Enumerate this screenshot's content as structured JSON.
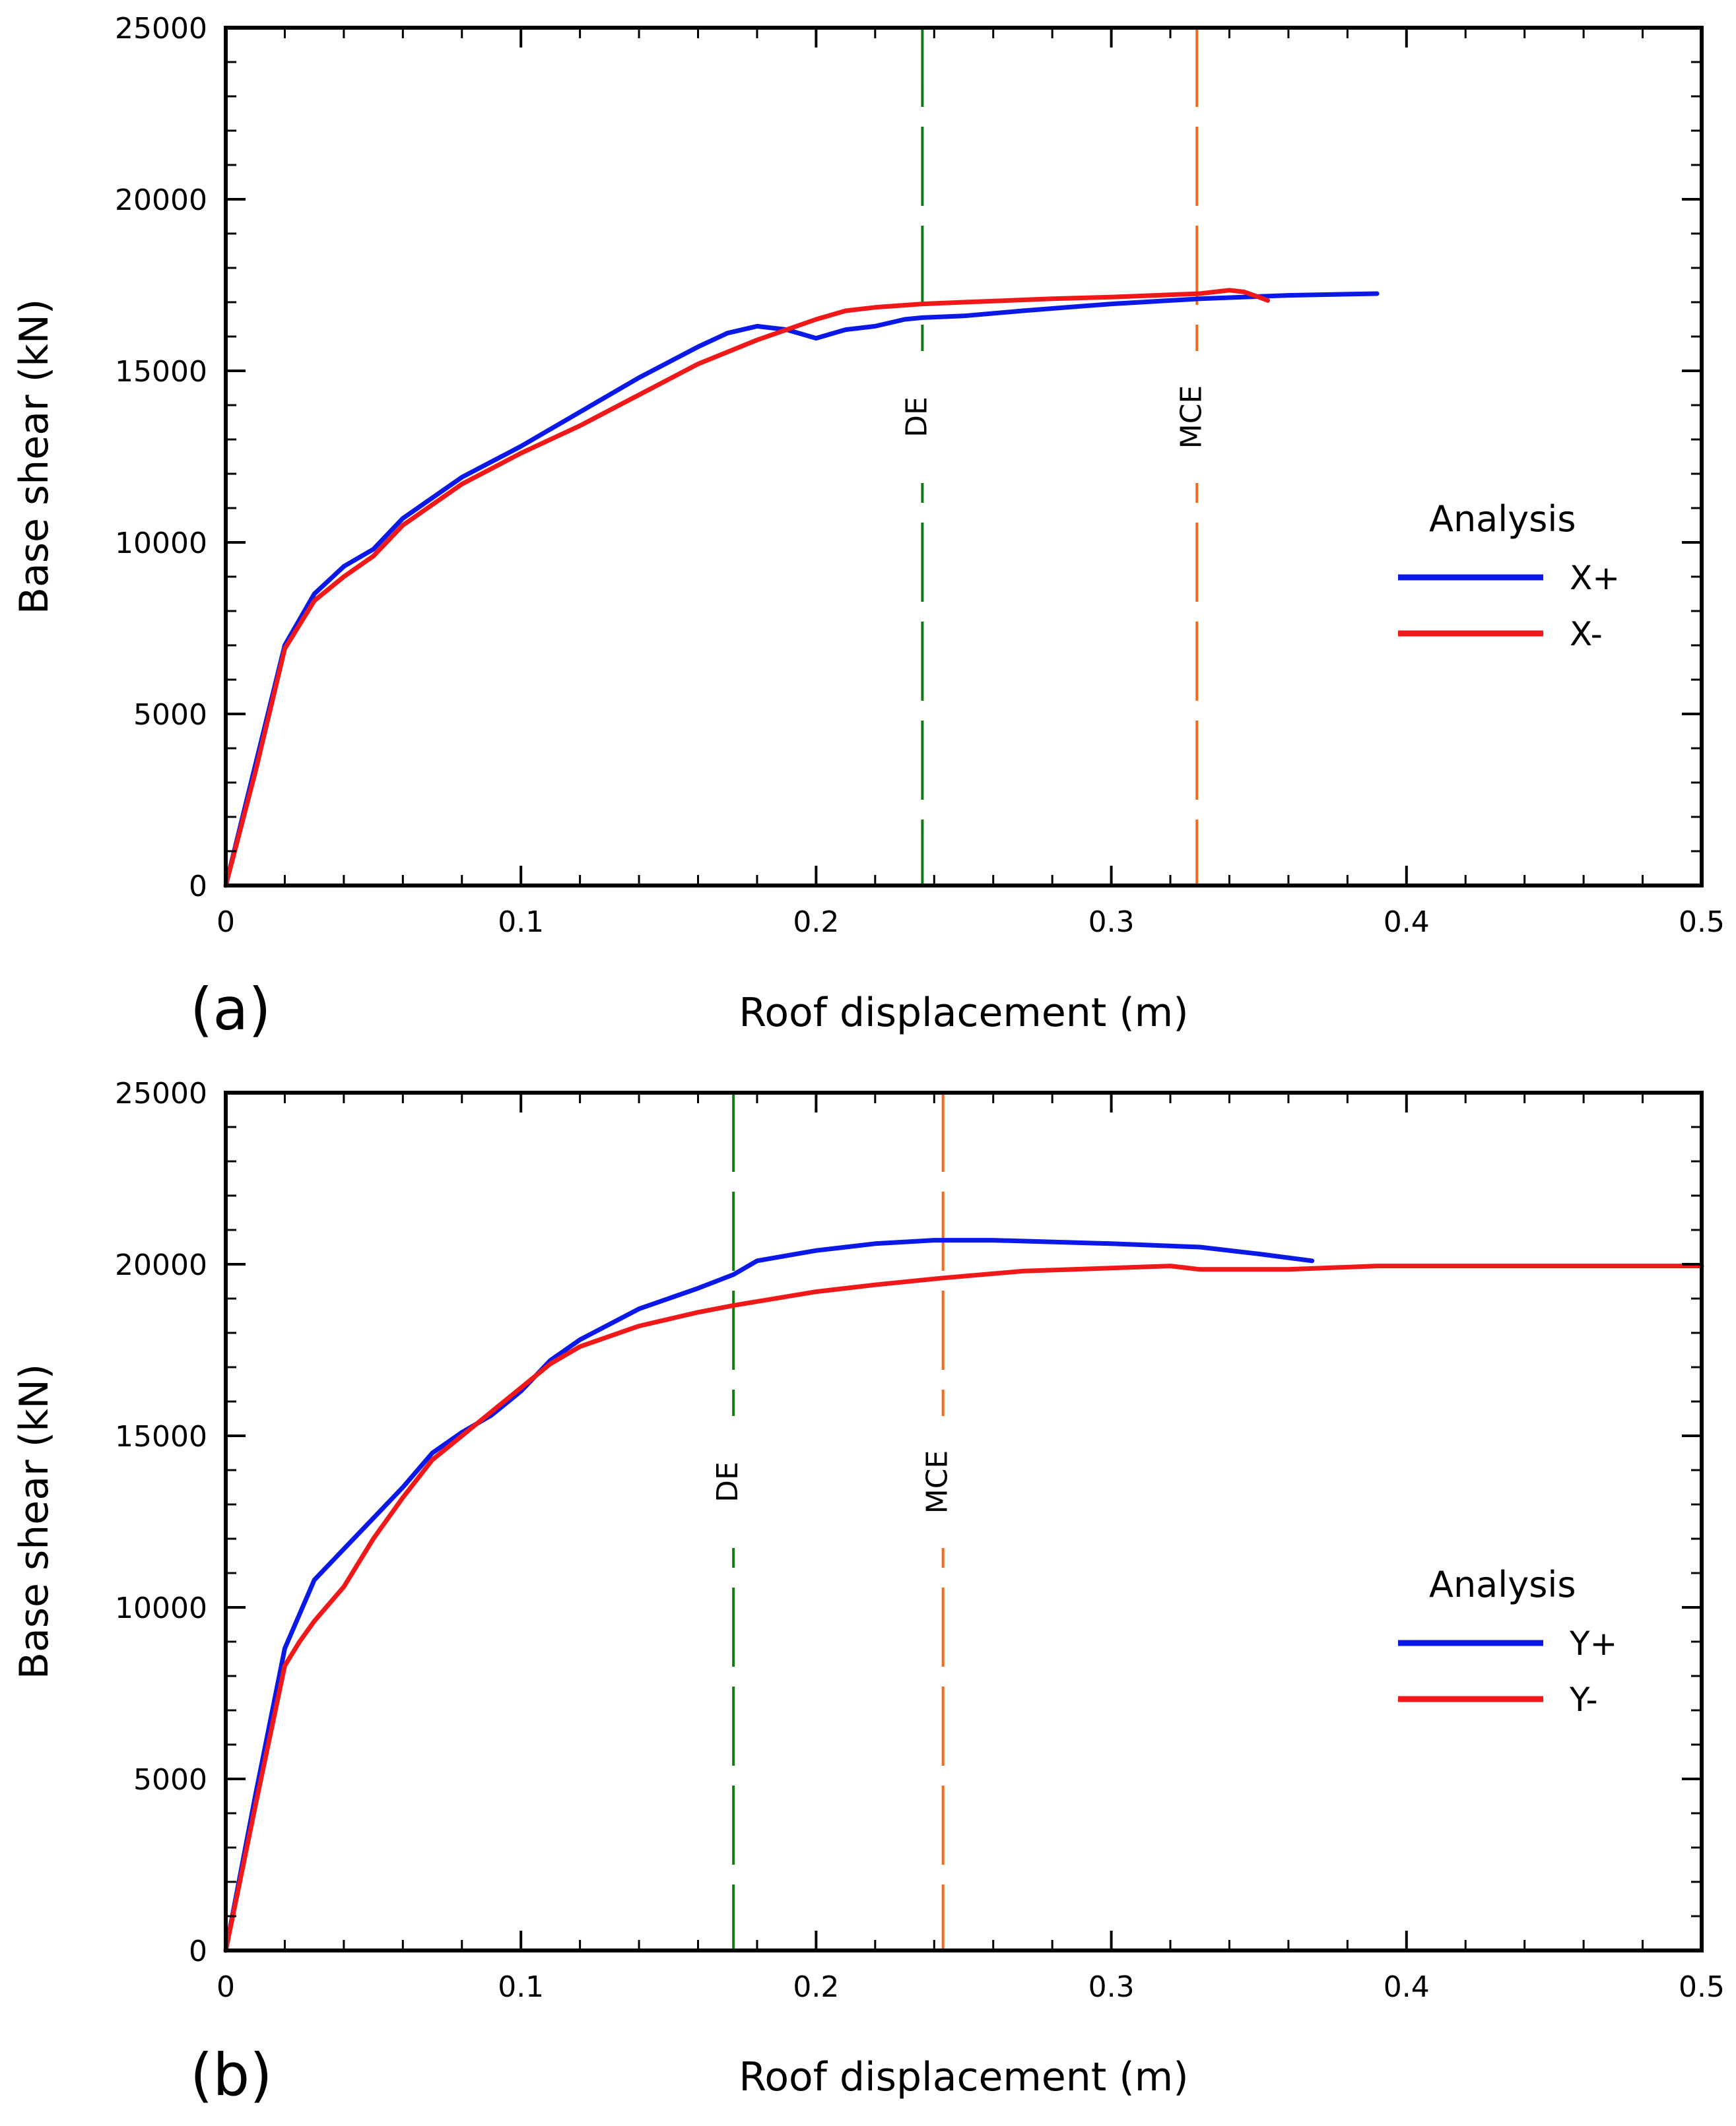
{
  "chart_data": [
    {
      "panel_label": "(a)",
      "type": "line",
      "xlabel": "Roof displacement (m)",
      "ylabel": "Base shear (kN)",
      "xlim": [
        0,
        0.5
      ],
      "ylim": [
        0,
        25000
      ],
      "xticks": [
        0,
        0.1,
        0.2,
        0.3,
        0.4,
        0.5
      ],
      "xtick_labels": [
        "0",
        "0.1",
        "0.2",
        "0.3",
        "0.4",
        "0.5"
      ],
      "yticks": [
        0,
        5000,
        10000,
        15000,
        20000,
        25000
      ],
      "ytick_labels": [
        "0",
        "5000",
        "10000",
        "15000",
        "20000",
        "25000"
      ],
      "legend_title": "Analysis",
      "legend_position": "right",
      "grid": false,
      "series": [
        {
          "name": "X+",
          "color": "#0a18e8",
          "x": [
            0,
            0.01,
            0.02,
            0.03,
            0.04,
            0.05,
            0.06,
            0.08,
            0.1,
            0.12,
            0.14,
            0.16,
            0.17,
            0.18,
            0.19,
            0.2,
            0.21,
            0.22,
            0.23,
            0.236,
            0.25,
            0.27,
            0.3,
            0.33,
            0.36,
            0.39
          ],
          "y": [
            0,
            3500,
            7000,
            8500,
            9300,
            9800,
            10700,
            11900,
            12800,
            13800,
            14800,
            15700,
            16100,
            16300,
            16200,
            15950,
            16200,
            16300,
            16500,
            16550,
            16600,
            16750,
            16950,
            17100,
            17200,
            17250
          ]
        },
        {
          "name": "X-",
          "color": "#f01818",
          "x": [
            0,
            0.01,
            0.02,
            0.03,
            0.04,
            0.05,
            0.06,
            0.08,
            0.1,
            0.12,
            0.14,
            0.16,
            0.18,
            0.2,
            0.21,
            0.22,
            0.236,
            0.25,
            0.28,
            0.3,
            0.33,
            0.34,
            0.345,
            0.35,
            0.353
          ],
          "y": [
            0,
            3300,
            6900,
            8300,
            9000,
            9600,
            10500,
            11700,
            12600,
            13400,
            14300,
            15200,
            15900,
            16500,
            16750,
            16850,
            16950,
            17000,
            17100,
            17150,
            17250,
            17350,
            17300,
            17150,
            17050
          ]
        }
      ],
      "reference_lines": [
        {
          "label": "DE",
          "x": 0.236,
          "color": "#127a12"
        },
        {
          "label": "MCE",
          "x": 0.329,
          "color": "#f26a1c"
        }
      ]
    },
    {
      "panel_label": "(b)",
      "type": "line",
      "xlabel": "Roof displacement (m)",
      "ylabel": "Base shear (kN)",
      "xlim": [
        0,
        0.5
      ],
      "ylim": [
        0,
        25000
      ],
      "xticks": [
        0,
        0.1,
        0.2,
        0.3,
        0.4,
        0.5
      ],
      "xtick_labels": [
        "0",
        "0.1",
        "0.2",
        "0.3",
        "0.4",
        "0.5"
      ],
      "yticks": [
        0,
        5000,
        10000,
        15000,
        20000,
        25000
      ],
      "ytick_labels": [
        "0",
        "5000",
        "10000",
        "15000",
        "20000",
        "25000"
      ],
      "legend_title": "Analysis",
      "legend_position": "right",
      "grid": false,
      "series": [
        {
          "name": "Y+",
          "color": "#0a18e8",
          "x": [
            0,
            0.01,
            0.02,
            0.03,
            0.04,
            0.05,
            0.06,
            0.07,
            0.08,
            0.09,
            0.1,
            0.11,
            0.12,
            0.14,
            0.16,
            0.172,
            0.18,
            0.2,
            0.22,
            0.24,
            0.26,
            0.3,
            0.33,
            0.35,
            0.368
          ],
          "y": [
            0,
            4500,
            8800,
            10800,
            11700,
            12600,
            13500,
            14500,
            15100,
            15600,
            16300,
            17200,
            17800,
            18700,
            19300,
            19700,
            20100,
            20400,
            20600,
            20700,
            20700,
            20600,
            20500,
            20300,
            20100
          ]
        },
        {
          "name": "Y-",
          "color": "#f01818",
          "x": [
            0,
            0.01,
            0.02,
            0.025,
            0.03,
            0.04,
            0.05,
            0.06,
            0.07,
            0.08,
            0.09,
            0.1,
            0.11,
            0.12,
            0.14,
            0.16,
            0.172,
            0.2,
            0.22,
            0.243,
            0.27,
            0.32,
            0.33,
            0.36,
            0.39,
            0.45,
            0.5
          ],
          "y": [
            0,
            4200,
            8300,
            9000,
            9600,
            10600,
            12000,
            13200,
            14300,
            15000,
            15700,
            16400,
            17100,
            17600,
            18200,
            18600,
            18800,
            19200,
            19400,
            19600,
            19800,
            19950,
            19850,
            19850,
            19950,
            19950,
            19950
          ]
        }
      ],
      "reference_lines": [
        {
          "label": "DE",
          "x": 0.172,
          "color": "#127a12"
        },
        {
          "label": "MCE",
          "x": 0.243,
          "color": "#f26a1c"
        }
      ]
    }
  ]
}
